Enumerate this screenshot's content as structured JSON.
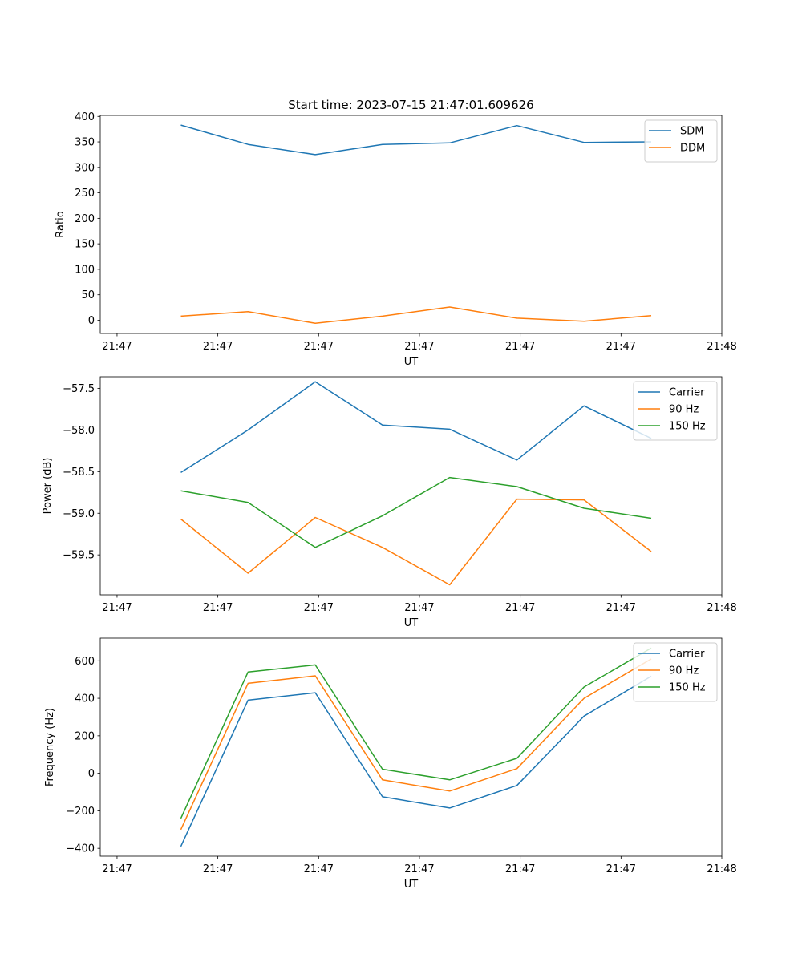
{
  "figure": {
    "suptitle": "Start time: 2023-07-15 21:47:01.609626"
  },
  "chart_data": [
    {
      "type": "line",
      "title": "Start time: 2023-07-15 21:47:01.609626",
      "xlabel": "UT",
      "ylabel": "Ratio",
      "x_tick_labels": [
        "21:47",
        "21:47",
        "21:47",
        "21:47",
        "21:47",
        "21:47",
        "21:48"
      ],
      "x_tick_positions": [
        -1,
        2,
        5,
        8,
        11,
        14,
        17
      ],
      "xlim": [
        -1.5,
        17
      ],
      "x": [
        0.9,
        2.9,
        4.9,
        6.9,
        8.9,
        10.9,
        12.9,
        14.9
      ],
      "ylim": [
        -26,
        402
      ],
      "y_ticks": [
        0,
        50,
        100,
        150,
        200,
        250,
        300,
        350,
        400
      ],
      "y_tick_labels": [
        "0",
        "50",
        "100",
        "150",
        "200",
        "250",
        "300",
        "350",
        "400"
      ],
      "legend_position": "top-right",
      "grid": false,
      "series": [
        {
          "name": "SDM",
          "color": "#1f77b4",
          "values": [
            383,
            345,
            325,
            345,
            348,
            382,
            349,
            350
          ]
        },
        {
          "name": "DDM",
          "color": "#ff7f0e",
          "values": [
            8,
            17,
            -6,
            8,
            26,
            4,
            -2,
            9
          ]
        }
      ]
    },
    {
      "type": "line",
      "title": "",
      "xlabel": "UT",
      "ylabel": "Power (dB)",
      "x_tick_labels": [
        "21:47",
        "21:47",
        "21:47",
        "21:47",
        "21:47",
        "21:47",
        "21:48"
      ],
      "x_tick_positions": [
        -1,
        2,
        5,
        8,
        11,
        14,
        17
      ],
      "xlim": [
        -1.5,
        17
      ],
      "x": [
        0.9,
        2.9,
        4.9,
        6.9,
        8.9,
        10.9,
        12.9,
        14.9
      ],
      "ylim": [
        -59.98,
        -57.36
      ],
      "y_ticks": [
        -59.5,
        -59.0,
        -58.5,
        -58.0,
        -57.5
      ],
      "y_tick_labels": [
        "−59.5",
        "−59.0",
        "−58.5",
        "−58.0",
        "−57.5"
      ],
      "legend_position": "top-right",
      "grid": false,
      "series": [
        {
          "name": "Carrier",
          "color": "#1f77b4",
          "values": [
            -58.51,
            -58.0,
            -57.42,
            -57.94,
            -57.99,
            -58.36,
            -57.71,
            -58.1
          ]
        },
        {
          "name": "90 Hz",
          "color": "#ff7f0e",
          "values": [
            -59.07,
            -59.72,
            -59.05,
            -59.41,
            -59.86,
            -58.83,
            -58.84,
            -59.46
          ]
        },
        {
          "name": "150 Hz",
          "color": "#2ca02c",
          "values": [
            -58.73,
            -58.87,
            -59.41,
            -59.03,
            -58.57,
            -58.68,
            -58.94,
            -59.06
          ]
        }
      ]
    },
    {
      "type": "line",
      "title": "",
      "xlabel": "UT",
      "ylabel": "Frequency (Hz)",
      "x_tick_labels": [
        "21:47",
        "21:47",
        "21:47",
        "21:47",
        "21:47",
        "21:47",
        "21:48"
      ],
      "x_tick_positions": [
        -1,
        2,
        5,
        8,
        11,
        14,
        17
      ],
      "xlim": [
        -1.5,
        17
      ],
      "x": [
        0.9,
        2.9,
        4.9,
        6.9,
        8.9,
        10.9,
        12.9,
        14.9
      ],
      "ylim": [
        -442,
        721
      ],
      "y_ticks": [
        -400,
        -200,
        0,
        200,
        400,
        600
      ],
      "y_tick_labels": [
        "−400",
        "−200",
        "0",
        "200",
        "400",
        "600"
      ],
      "legend_position": "top-right",
      "grid": false,
      "series": [
        {
          "name": "Carrier",
          "color": "#1f77b4",
          "values": [
            -390,
            390,
            430,
            -125,
            -185,
            -65,
            305,
            518
          ]
        },
        {
          "name": "90 Hz",
          "color": "#ff7f0e",
          "values": [
            -300,
            480,
            520,
            -35,
            -95,
            25,
            400,
            610
          ]
        },
        {
          "name": "150 Hz",
          "color": "#2ca02c",
          "values": [
            -240,
            540,
            578,
            22,
            -35,
            80,
            460,
            668
          ]
        }
      ]
    }
  ]
}
